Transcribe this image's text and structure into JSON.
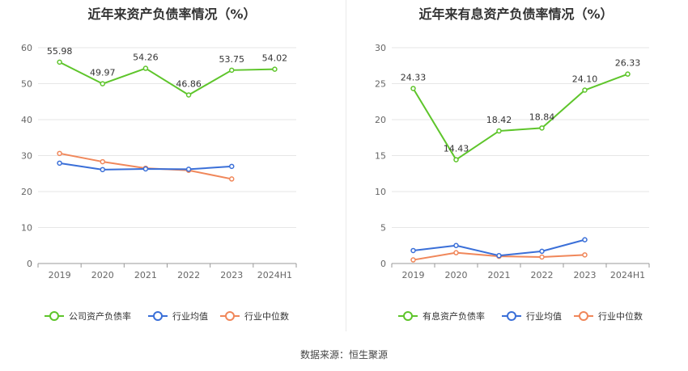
{
  "source_prefix": "数据来源：",
  "source_name": "恒生聚源",
  "colors": {
    "company": "#5ec52b",
    "avg": "#3a6fd8",
    "median": "#f0875a",
    "grid": "#e6e6e6",
    "axis": "#999999"
  },
  "chart_data": [
    {
      "type": "line",
      "title": "近年来资产负债率情况（%）",
      "categories": [
        "2019",
        "2020",
        "2021",
        "2022",
        "2023",
        "2024H1"
      ],
      "ylim": [
        0,
        60
      ],
      "yticks": [
        0,
        10,
        20,
        30,
        40,
        50,
        60
      ],
      "legend_position": "bottom",
      "series": [
        {
          "name": "公司资产负债率",
          "key": "company",
          "values": [
            55.98,
            49.97,
            54.26,
            46.86,
            53.75,
            54.02
          ],
          "labels": [
            "55.98",
            "49.97",
            "54.26",
            "46.86",
            "53.75",
            "54.02"
          ]
        },
        {
          "name": "行业均值",
          "key": "avg",
          "values": [
            27.9,
            26.1,
            26.3,
            26.2,
            27.0,
            null
          ]
        },
        {
          "name": "行业中位数",
          "key": "median",
          "values": [
            30.6,
            28.3,
            26.5,
            25.9,
            23.5,
            null
          ]
        }
      ]
    },
    {
      "type": "line",
      "title": "近年来有息资产负债率情况（%）",
      "categories": [
        "2019",
        "2020",
        "2021",
        "2022",
        "2023",
        "2024H1"
      ],
      "ylim": [
        0,
        30
      ],
      "yticks": [
        0,
        5,
        10,
        15,
        20,
        25,
        30
      ],
      "legend_position": "bottom",
      "series": [
        {
          "name": "有息资产负债率",
          "key": "company",
          "values": [
            24.33,
            14.43,
            18.42,
            18.84,
            24.1,
            26.33
          ],
          "labels": [
            "24.33",
            "14.43",
            "18.42",
            "18.84",
            "24.10",
            "26.33"
          ]
        },
        {
          "name": "行业均值",
          "key": "avg",
          "values": [
            1.8,
            2.5,
            1.1,
            1.7,
            3.3,
            null
          ]
        },
        {
          "name": "行业中位数",
          "key": "median",
          "values": [
            0.5,
            1.5,
            1.0,
            0.9,
            1.2,
            null
          ]
        }
      ]
    }
  ]
}
